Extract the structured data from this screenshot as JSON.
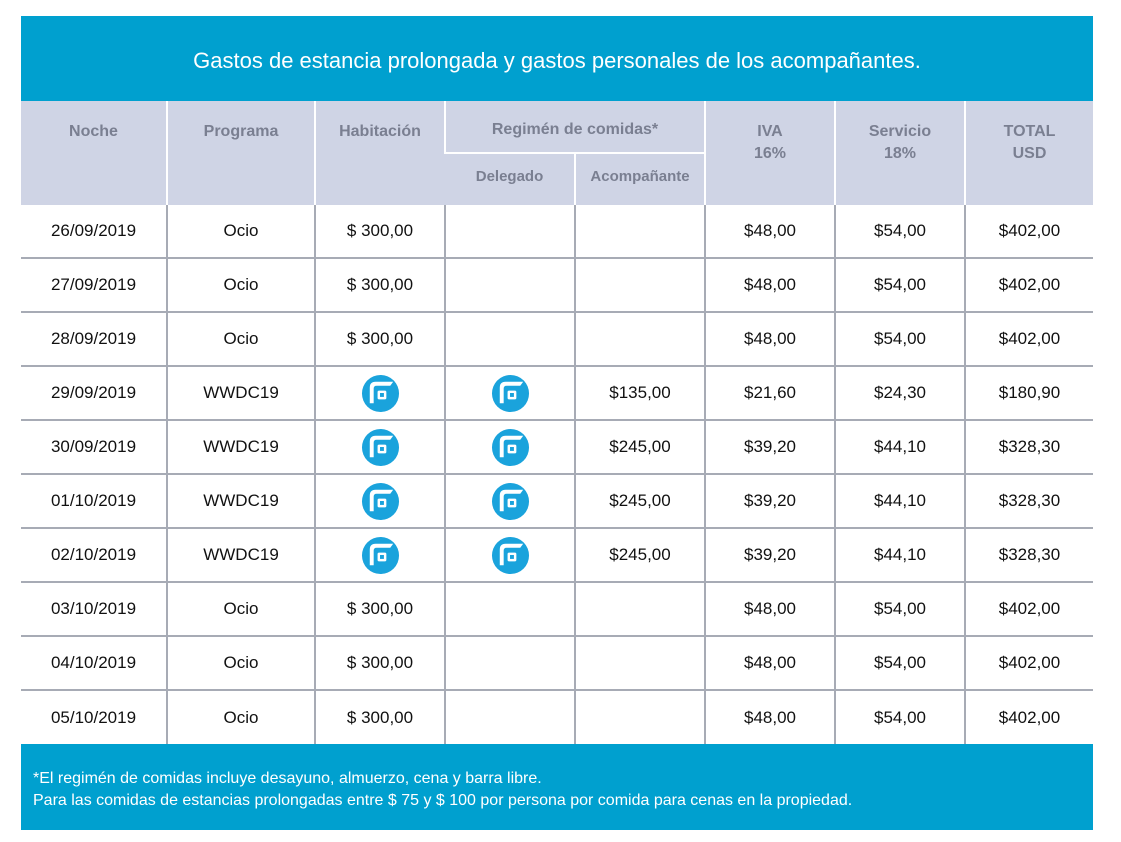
{
  "title": "Gastos de estancia prolongada y gastos personales de los acompañantes.",
  "headers": {
    "noche": "Noche",
    "programa": "Programa",
    "habitacion": "Habitación",
    "regimen": "Regimén de comidas*",
    "delegado": "Delegado",
    "acompanante": "Acompañante",
    "iva": "IVA",
    "iva_rate": "16%",
    "servicio": "Servicio",
    "servicio_rate": "18%",
    "total": "TOTAL",
    "total_currency": "USD"
  },
  "icon": {
    "name": "brand-logo-icon",
    "color": "#1aa3dc"
  },
  "rows": [
    {
      "noche": "26/09/2019",
      "programa": "Ocio",
      "habitacion": "$ 300,00",
      "delegado": "",
      "acompanante": "",
      "iva": "$48,00",
      "servicio": "$54,00",
      "total": "$402,00"
    },
    {
      "noche": "27/09/2019",
      "programa": "Ocio",
      "habitacion": "$ 300,00",
      "delegado": "",
      "acompanante": "",
      "iva": "$48,00",
      "servicio": "$54,00",
      "total": "$402,00"
    },
    {
      "noche": "28/09/2019",
      "programa": "Ocio",
      "habitacion": "$ 300,00",
      "delegado": "",
      "acompanante": "",
      "iva": "$48,00",
      "servicio": "$54,00",
      "total": "$402,00"
    },
    {
      "noche": "29/09/2019",
      "programa": "WWDC19",
      "habitacion_icon": true,
      "delegado_icon": true,
      "acompanante": "$135,00",
      "iva": "$21,60",
      "servicio": "$24,30",
      "total": "$180,90"
    },
    {
      "noche": "30/09/2019",
      "programa": "WWDC19",
      "habitacion_icon": true,
      "delegado_icon": true,
      "acompanante": "$245,00",
      "iva": "$39,20",
      "servicio": "$44,10",
      "total": "$328,30"
    },
    {
      "noche": "01/10/2019",
      "programa": "WWDC19",
      "habitacion_icon": true,
      "delegado_icon": true,
      "acompanante": "$245,00",
      "iva": "$39,20",
      "servicio": "$44,10",
      "total": "$328,30"
    },
    {
      "noche": "02/10/2019",
      "programa": "WWDC19",
      "habitacion_icon": true,
      "delegado_icon": true,
      "acompanante": "$245,00",
      "iva": "$39,20",
      "servicio": "$44,10",
      "total": "$328,30"
    },
    {
      "noche": "03/10/2019",
      "programa": "Ocio",
      "habitacion": "$ 300,00",
      "delegado": "",
      "acompanante": "",
      "iva": "$48,00",
      "servicio": "$54,00",
      "total": "$402,00"
    },
    {
      "noche": "04/10/2019",
      "programa": "Ocio",
      "habitacion": "$ 300,00",
      "delegado": "",
      "acompanante": "",
      "iva": "$48,00",
      "servicio": "$54,00",
      "total": "$402,00"
    },
    {
      "noche": "05/10/2019",
      "programa": "Ocio",
      "habitacion": "$ 300,00",
      "delegado": "",
      "acompanante": "",
      "iva": "$48,00",
      "servicio": "$54,00",
      "total": "$402,00"
    }
  ],
  "footer": {
    "note1": "*El regimén de comidas incluye desayuno, almuerzo, cena y barra libre.",
    "note2": "Para las comidas de estancias prolongadas entre $ 75 y $ 100 por persona por comida para cenas en la propiedad."
  }
}
